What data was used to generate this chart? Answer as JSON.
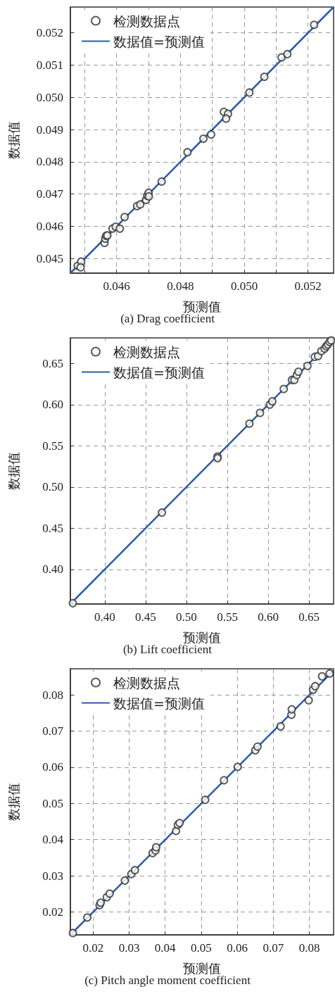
{
  "chart_data": [
    {
      "type": "scatter",
      "title": "(a) Drag coefficient",
      "xlabel": "预测值",
      "ylabel": "数据值",
      "grid": true,
      "legend": "top left",
      "xlim": [
        0.04455,
        0.0528
      ],
      "ylim": [
        0.04455,
        0.0528
      ],
      "xticks": [
        {
          "value": 0.045,
          "label": null
        },
        0.046,
        {
          "value": 0.047,
          "label": null
        },
        0.048,
        {
          "value": 0.049,
          "label": null
        },
        {
          "value": 0.05,
          "label": "0.050"
        },
        {
          "value": 0.051,
          "label": null
        },
        0.052
      ],
      "yticks": [
        0.045,
        0.046,
        0.047,
        0.048,
        0.049,
        {
          "value": 0.05,
          "label": "0.050"
        },
        0.051,
        0.052
      ],
      "series": [
        {
          "name": "检测数据点",
          "marker": "circle",
          "color": "#333333",
          "x": [
            0.04478,
            0.04489,
            0.04487,
            0.04562,
            0.04564,
            0.04567,
            0.04571,
            0.04587,
            0.04597,
            0.0461,
            0.04625,
            0.04664,
            0.04674,
            0.04692,
            0.04696,
            0.047,
            0.04701,
            0.04741,
            0.04822,
            0.04872,
            0.04896,
            0.04936,
            0.04949,
            0.04943,
            0.05016,
            0.05063,
            0.05117,
            0.05135,
            0.05219
          ],
          "values": [
            0.04478,
            0.04491,
            0.04473,
            0.04549,
            0.04562,
            0.04571,
            0.04572,
            0.04593,
            0.04599,
            0.04593,
            0.04629,
            0.04663,
            0.04668,
            0.04682,
            0.04695,
            0.04704,
            0.04693,
            0.04739,
            0.0483,
            0.04872,
            0.04885,
            0.04955,
            0.04949,
            0.04934,
            0.05015,
            0.05064,
            0.05124,
            0.05134,
            0.05225
          ]
        },
        {
          "name": "数据值=预测值",
          "type": "line",
          "marker": "none",
          "color": "#2a5caa",
          "x": [
            0.04455,
            0.0528
          ],
          "values": [
            0.04455,
            0.0528
          ]
        }
      ]
    },
    {
      "type": "scatter",
      "title": "(b) Lift coefficient",
      "xlabel": "预测值",
      "ylabel": "数据值",
      "grid": true,
      "legend": "top left",
      "xlim": [
        0.358,
        0.68
      ],
      "ylim": [
        0.358,
        0.681
      ],
      "xticks": [
        {
          "value": 0.4,
          "label": "0.40"
        },
        0.45,
        {
          "value": 0.5,
          "label": "0.50"
        },
        0.55,
        {
          "value": 0.6,
          "label": "0.60"
        },
        0.65
      ],
      "yticks": [
        {
          "value": 0.4,
          "label": "0.40"
        },
        0.45,
        {
          "value": 0.5,
          "label": "0.50"
        },
        0.55,
        {
          "value": 0.6,
          "label": "0.60"
        },
        0.65
      ],
      "series": [
        {
          "name": "检测数据点",
          "marker": "circle",
          "color": "#333333",
          "x": [
            0.361,
            0.47,
            0.538,
            0.538,
            0.577,
            0.59,
            0.602,
            0.605,
            0.619,
            0.629,
            0.632,
            0.635,
            0.637,
            0.648,
            0.657,
            0.661,
            0.665,
            0.669,
            0.671,
            0.673,
            0.675,
            0.677
          ],
          "values": [
            0.359,
            0.469,
            0.537,
            0.535,
            0.577,
            0.59,
            0.6,
            0.604,
            0.619,
            0.63,
            0.63,
            0.636,
            0.64,
            0.647,
            0.658,
            0.659,
            0.665,
            0.668,
            0.671,
            0.673,
            0.676,
            0.678
          ]
        },
        {
          "name": "数据值=预测值",
          "type": "line",
          "marker": "none",
          "color": "#2a5caa",
          "x": [
            0.358,
            0.68
          ],
          "values": [
            0.358,
            0.68
          ]
        }
      ]
    },
    {
      "type": "scatter",
      "title": "(c) Pitch angle moment coefficient",
      "xlabel": "预测值",
      "ylabel": "数据值",
      "grid": true,
      "legend": "top left",
      "xlim": [
        0.0137,
        0.0867
      ],
      "ylim": [
        0.0137,
        0.0872
      ],
      "xticks": [
        0.02,
        0.03,
        0.04,
        0.05,
        0.06,
        0.07,
        0.08
      ],
      "yticks": [
        0.02,
        0.03,
        0.04,
        0.05,
        0.06,
        0.07,
        0.08
      ],
      "series": [
        {
          "name": "检测数据点",
          "marker": "circle",
          "color": "#333333",
          "x": [
            0.0144,
            0.0184,
            0.0218,
            0.0221,
            0.0238,
            0.0246,
            0.0288,
            0.0306,
            0.0316,
            0.0365,
            0.0373,
            0.0375,
            0.043,
            0.0435,
            0.044,
            0.0511,
            0.0563,
            0.0601,
            0.065,
            0.0656,
            0.072,
            0.075,
            0.0751,
            0.0798,
            0.081,
            0.0816,
            0.0835,
            0.0856
          ],
          "values": [
            0.0142,
            0.0185,
            0.0219,
            0.0226,
            0.0241,
            0.0251,
            0.0287,
            0.0305,
            0.0316,
            0.0363,
            0.037,
            0.0379,
            0.0424,
            0.0441,
            0.0446,
            0.051,
            0.0564,
            0.0601,
            0.0647,
            0.0657,
            0.0713,
            0.0745,
            0.076,
            0.0785,
            0.0814,
            0.0824,
            0.0851,
            0.0859
          ]
        },
        {
          "name": "数据值=预测值",
          "type": "line",
          "marker": "none",
          "color": "#2a5caa",
          "x": [
            0.0137,
            0.0867
          ],
          "values": [
            0.0137,
            0.0867
          ]
        }
      ]
    }
  ]
}
